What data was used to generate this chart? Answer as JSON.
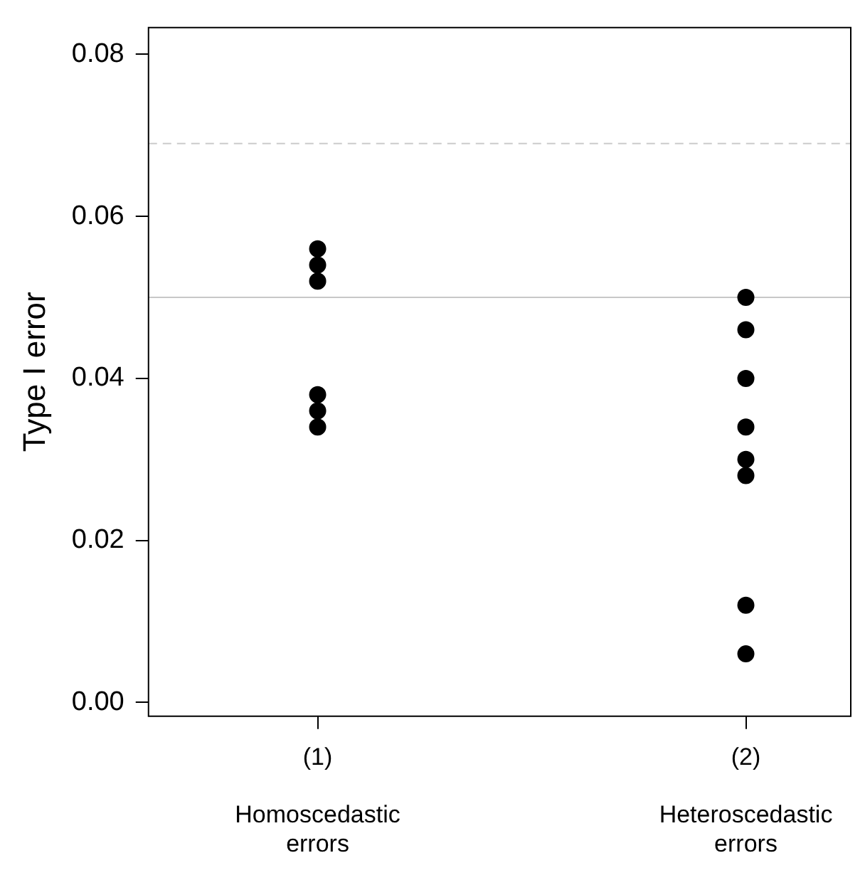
{
  "chart_data": {
    "type": "scatter",
    "ylabel": "Type I error",
    "categories": [
      "(1)\n\nHomoscedastic\nerrors",
      "(2)\n\nHeteroscedastic\nerrors"
    ],
    "series": [
      {
        "color": "#000000",
        "x": [
          "(1)\n\nHomoscedastic\nerrors",
          "(1)\n\nHomoscedastic\nerrors",
          "(1)\n\nHomoscedastic\nerrors",
          "(1)\n\nHomoscedastic\nerrors",
          "(1)\n\nHomoscedastic\nerrors",
          "(1)\n\nHomoscedastic\nerrors",
          "(2)\n\nHeteroscedastic\nerrors",
          "(2)\n\nHeteroscedastic\nerrors",
          "(2)\n\nHeteroscedastic\nerrors",
          "(2)\n\nHeteroscedastic\nerrors",
          "(2)\n\nHeteroscedastic\nerrors",
          "(2)\n\nHeteroscedastic\nerrors",
          "(2)\n\nHeteroscedastic\nerrors",
          "(2)\n\nHeteroscedastic\nerrors"
        ],
        "values": [
          0.056,
          0.054,
          0.052,
          0.038,
          0.036,
          0.034,
          0.05,
          0.046,
          0.04,
          0.034,
          0.03,
          0.028,
          0.012,
          0.006
        ]
      }
    ],
    "ylim": [
      -0.0017,
      0.0833
    ],
    "yticks": [
      {
        "value": 0,
        "label": "0.00"
      },
      {
        "value": 0.02,
        "label": "0.02"
      },
      {
        "value": 0.04,
        "label": "0.04"
      },
      {
        "value": 0.06,
        "label": "0.06"
      },
      {
        "value": 0.08,
        "label": "0.08"
      }
    ],
    "ref_lines": [
      {
        "axis": "y",
        "value": 0.069,
        "color": "#cccccc",
        "line_style": "dashed"
      },
      {
        "axis": "y",
        "value": 0.05,
        "color": "#c8c8c8",
        "line_style": "solid"
      }
    ],
    "marker": "circle",
    "grid": false,
    "legend": false
  }
}
